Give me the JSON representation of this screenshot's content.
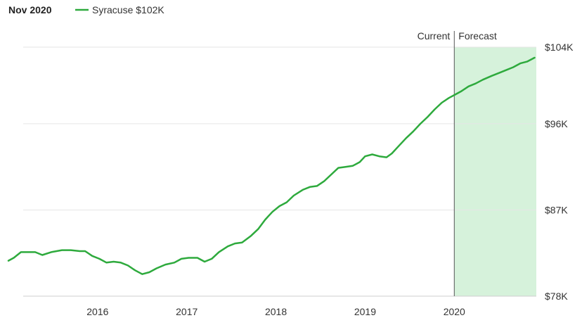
{
  "legend": {
    "date": "Nov 2020",
    "series_label": "Syracuse $102K"
  },
  "markers": {
    "current_label": "Current",
    "forecast_label": "Forecast"
  },
  "colors": {
    "line": "#2eaa3d",
    "forecast_fill": "#d6f2db",
    "grid": "#e6e6e6",
    "divider": "#555555"
  },
  "chart_data": {
    "type": "line",
    "title": "",
    "xlabel": "",
    "ylabel": "",
    "x_ticks": [
      {
        "label": "2016",
        "value": 2016.0
      },
      {
        "label": "2017",
        "value": 2017.0
      },
      {
        "label": "2018",
        "value": 2018.0
      },
      {
        "label": "2019",
        "value": 2019.0
      },
      {
        "label": "2020",
        "value": 2020.0
      }
    ],
    "y_ticks": [
      {
        "label": "$104K",
        "value": 104
      },
      {
        "label": "$96K",
        "value": 96
      },
      {
        "label": "$87K",
        "value": 87
      },
      {
        "label": "$78K",
        "value": 78
      }
    ],
    "xlim": [
      2015.0,
      2020.92
    ],
    "ylim": [
      78,
      104
    ],
    "forecast_start": 2020.0,
    "series": [
      {
        "name": "Syracuse",
        "unit": "$K",
        "points": [
          [
            2015.0,
            81.7
          ],
          [
            2015.06,
            82.0
          ],
          [
            2015.14,
            82.6
          ],
          [
            2015.3,
            82.6
          ],
          [
            2015.38,
            82.3
          ],
          [
            2015.48,
            82.6
          ],
          [
            2015.6,
            82.8
          ],
          [
            2015.7,
            82.8
          ],
          [
            2015.8,
            82.7
          ],
          [
            2015.86,
            82.7
          ],
          [
            2015.94,
            82.2
          ],
          [
            2016.02,
            81.9
          ],
          [
            2016.1,
            81.5
          ],
          [
            2016.18,
            81.6
          ],
          [
            2016.26,
            81.5
          ],
          [
            2016.34,
            81.2
          ],
          [
            2016.42,
            80.7
          ],
          [
            2016.5,
            80.3
          ],
          [
            2016.58,
            80.5
          ],
          [
            2016.66,
            80.9
          ],
          [
            2016.76,
            81.3
          ],
          [
            2016.86,
            81.5
          ],
          [
            2016.94,
            81.9
          ],
          [
            2017.02,
            82.0
          ],
          [
            2017.12,
            82.0
          ],
          [
            2017.2,
            81.6
          ],
          [
            2017.28,
            81.9
          ],
          [
            2017.36,
            82.6
          ],
          [
            2017.46,
            83.2
          ],
          [
            2017.54,
            83.5
          ],
          [
            2017.62,
            83.6
          ],
          [
            2017.72,
            84.3
          ],
          [
            2017.8,
            85.0
          ],
          [
            2017.88,
            86.0
          ],
          [
            2017.96,
            86.8
          ],
          [
            2018.04,
            87.4
          ],
          [
            2018.12,
            87.8
          ],
          [
            2018.2,
            88.5
          ],
          [
            2018.3,
            89.1
          ],
          [
            2018.38,
            89.4
          ],
          [
            2018.46,
            89.5
          ],
          [
            2018.54,
            90.0
          ],
          [
            2018.62,
            90.7
          ],
          [
            2018.7,
            91.4
          ],
          [
            2018.78,
            91.5
          ],
          [
            2018.86,
            91.6
          ],
          [
            2018.94,
            92.0
          ],
          [
            2019.0,
            92.6
          ],
          [
            2019.08,
            92.8
          ],
          [
            2019.16,
            92.6
          ],
          [
            2019.24,
            92.5
          ],
          [
            2019.3,
            92.9
          ],
          [
            2019.38,
            93.7
          ],
          [
            2019.46,
            94.5
          ],
          [
            2019.54,
            95.2
          ],
          [
            2019.62,
            96.0
          ],
          [
            2019.7,
            96.7
          ],
          [
            2019.78,
            97.5
          ],
          [
            2019.86,
            98.2
          ],
          [
            2019.94,
            98.7
          ],
          [
            2020.0,
            99.0
          ],
          [
            2020.08,
            99.4
          ],
          [
            2020.16,
            99.9
          ],
          [
            2020.24,
            100.2
          ],
          [
            2020.32,
            100.6
          ],
          [
            2020.42,
            101.0
          ],
          [
            2020.5,
            101.3
          ],
          [
            2020.58,
            101.6
          ],
          [
            2020.66,
            101.9
          ],
          [
            2020.74,
            102.3
          ],
          [
            2020.82,
            102.5
          ],
          [
            2020.9,
            102.9
          ]
        ]
      }
    ]
  }
}
